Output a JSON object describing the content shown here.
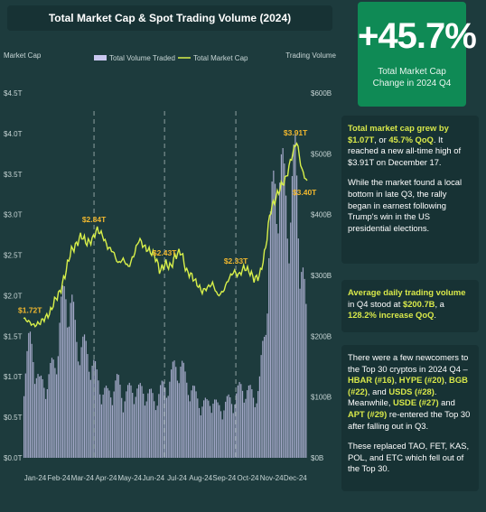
{
  "header": {
    "title": "Total Market Cap & Spot Trading Volume (2024)"
  },
  "kpi": {
    "value": "+45.7%",
    "label_line1": "Total Market Cap",
    "label_line2": "Change in 2024 Q4"
  },
  "panels": {
    "p1": {
      "a_hl": "Total market cap grew by $1.07T",
      "a_mid": ", or ",
      "a_hl2": "45.7% QoQ",
      "a_rest": ". It reached a new all-time high of $3.91T on December 17.",
      "b": "While the market found a local bottom in late Q3, the rally began in earnest following Trump's win in the US presidential elections."
    },
    "p2": {
      "a_hl": "Average daily trading volume",
      "a_mid": " in Q4 stood at ",
      "a_hl2": "$200.7B",
      "a_mid2": ", a ",
      "a_hl3": "128.2% increase QoQ",
      "a_end": "."
    },
    "p3": {
      "a_start": "There were a few newcomers to the Top 30 cryptos in 2024 Q4 – ",
      "a_hl1": "HBAR (#16)",
      "a_sep1": ", ",
      "a_hl2": "HYPE (#20)",
      "a_sep2": ", ",
      "a_hl3": "BGB (#22)",
      "a_sep3": ", and ",
      "a_hl4": "USDS (#28)",
      "a_sep4": ". Meanwhile, ",
      "a_hl5": "USDE (#27)",
      "a_sep5": " and ",
      "a_hl6": "APT (#29)",
      "a_end": " re-entered the Top 30 after falling out in Q3.",
      "b": "These replaced TAO, FET, KAS, POL, and ETC which fell out of the Top 30."
    }
  },
  "colors": {
    "volume": "#c9c7ef",
    "market_cap": "#d8f04a",
    "annotation": "#f2b82e",
    "axis_text": "#c8d6d6"
  },
  "chart_data": {
    "type": "bar+line",
    "y_left_label": "Market Cap",
    "y_right_label": "Trading Volume",
    "y_left_ticks": [
      "$0.0T",
      "$0.5T",
      "$1.0T",
      "$1.5T",
      "$2.0T",
      "$2.5T",
      "$3.0T",
      "$3.5T",
      "$4.0T",
      "$4.5T"
    ],
    "y_right_ticks": [
      "$0B",
      "$100B",
      "$200B",
      "$300B",
      "$400B",
      "$500B",
      "$600B"
    ],
    "ylim_left": [
      0,
      4.5
    ],
    "ylim_right": [
      0,
      600
    ],
    "months": [
      "Jan-24",
      "Feb-24",
      "Mar-24",
      "Apr-24",
      "May-24",
      "Jun-24",
      "Jul-24",
      "Aug-24",
      "Sep-24",
      "Oct-24",
      "Nov-24",
      "Dec-24"
    ],
    "legend": [
      "Total Volume Traded",
      "Total Market Cap"
    ],
    "annotations": [
      {
        "label": "$1.72T",
        "day": 2,
        "value": 1.72
      },
      {
        "label": "$2.84T",
        "day": 91,
        "value": 2.84
      },
      {
        "label": "$2.43T",
        "day": 182,
        "value": 2.43
      },
      {
        "label": "$2.33T",
        "day": 274,
        "value": 2.33
      },
      {
        "label": "$3.91T",
        "day": 351,
        "value": 3.91
      },
      {
        "label": "$3.40T",
        "day": 365,
        "value": 3.4
      }
    ],
    "quarter_markers_day": [
      91,
      182,
      274
    ],
    "market_cap_weekly": [
      1.72,
      1.68,
      1.63,
      1.66,
      1.72,
      1.78,
      1.95,
      2.05,
      2.28,
      2.55,
      2.62,
      2.75,
      2.65,
      2.68,
      2.82,
      2.75,
      2.6,
      2.55,
      2.4,
      2.45,
      2.35,
      2.5,
      2.7,
      2.6,
      2.55,
      2.5,
      2.3,
      2.4,
      2.35,
      2.5,
      2.55,
      2.3,
      2.25,
      2.15,
      2.05,
      2.1,
      2.15,
      2.0,
      2.05,
      2.2,
      2.3,
      2.25,
      2.35,
      2.3,
      2.2,
      2.25,
      2.55,
      3.05,
      3.2,
      3.35,
      3.45,
      3.7,
      3.91,
      3.55,
      3.4
    ],
    "volume_weekly": [
      130,
      175,
      155,
      110,
      115,
      130,
      145,
      220,
      250,
      240,
      180,
      175,
      160,
      150,
      120,
      105,
      95,
      110,
      115,
      95,
      100,
      110,
      100,
      105,
      95,
      90,
      100,
      110,
      120,
      140,
      145,
      115,
      110,
      90,
      85,
      80,
      95,
      75,
      80,
      85,
      90,
      100,
      110,
      100,
      95,
      105,
      190,
      330,
      420,
      440,
      400,
      380,
      450,
      320,
      210
    ]
  }
}
